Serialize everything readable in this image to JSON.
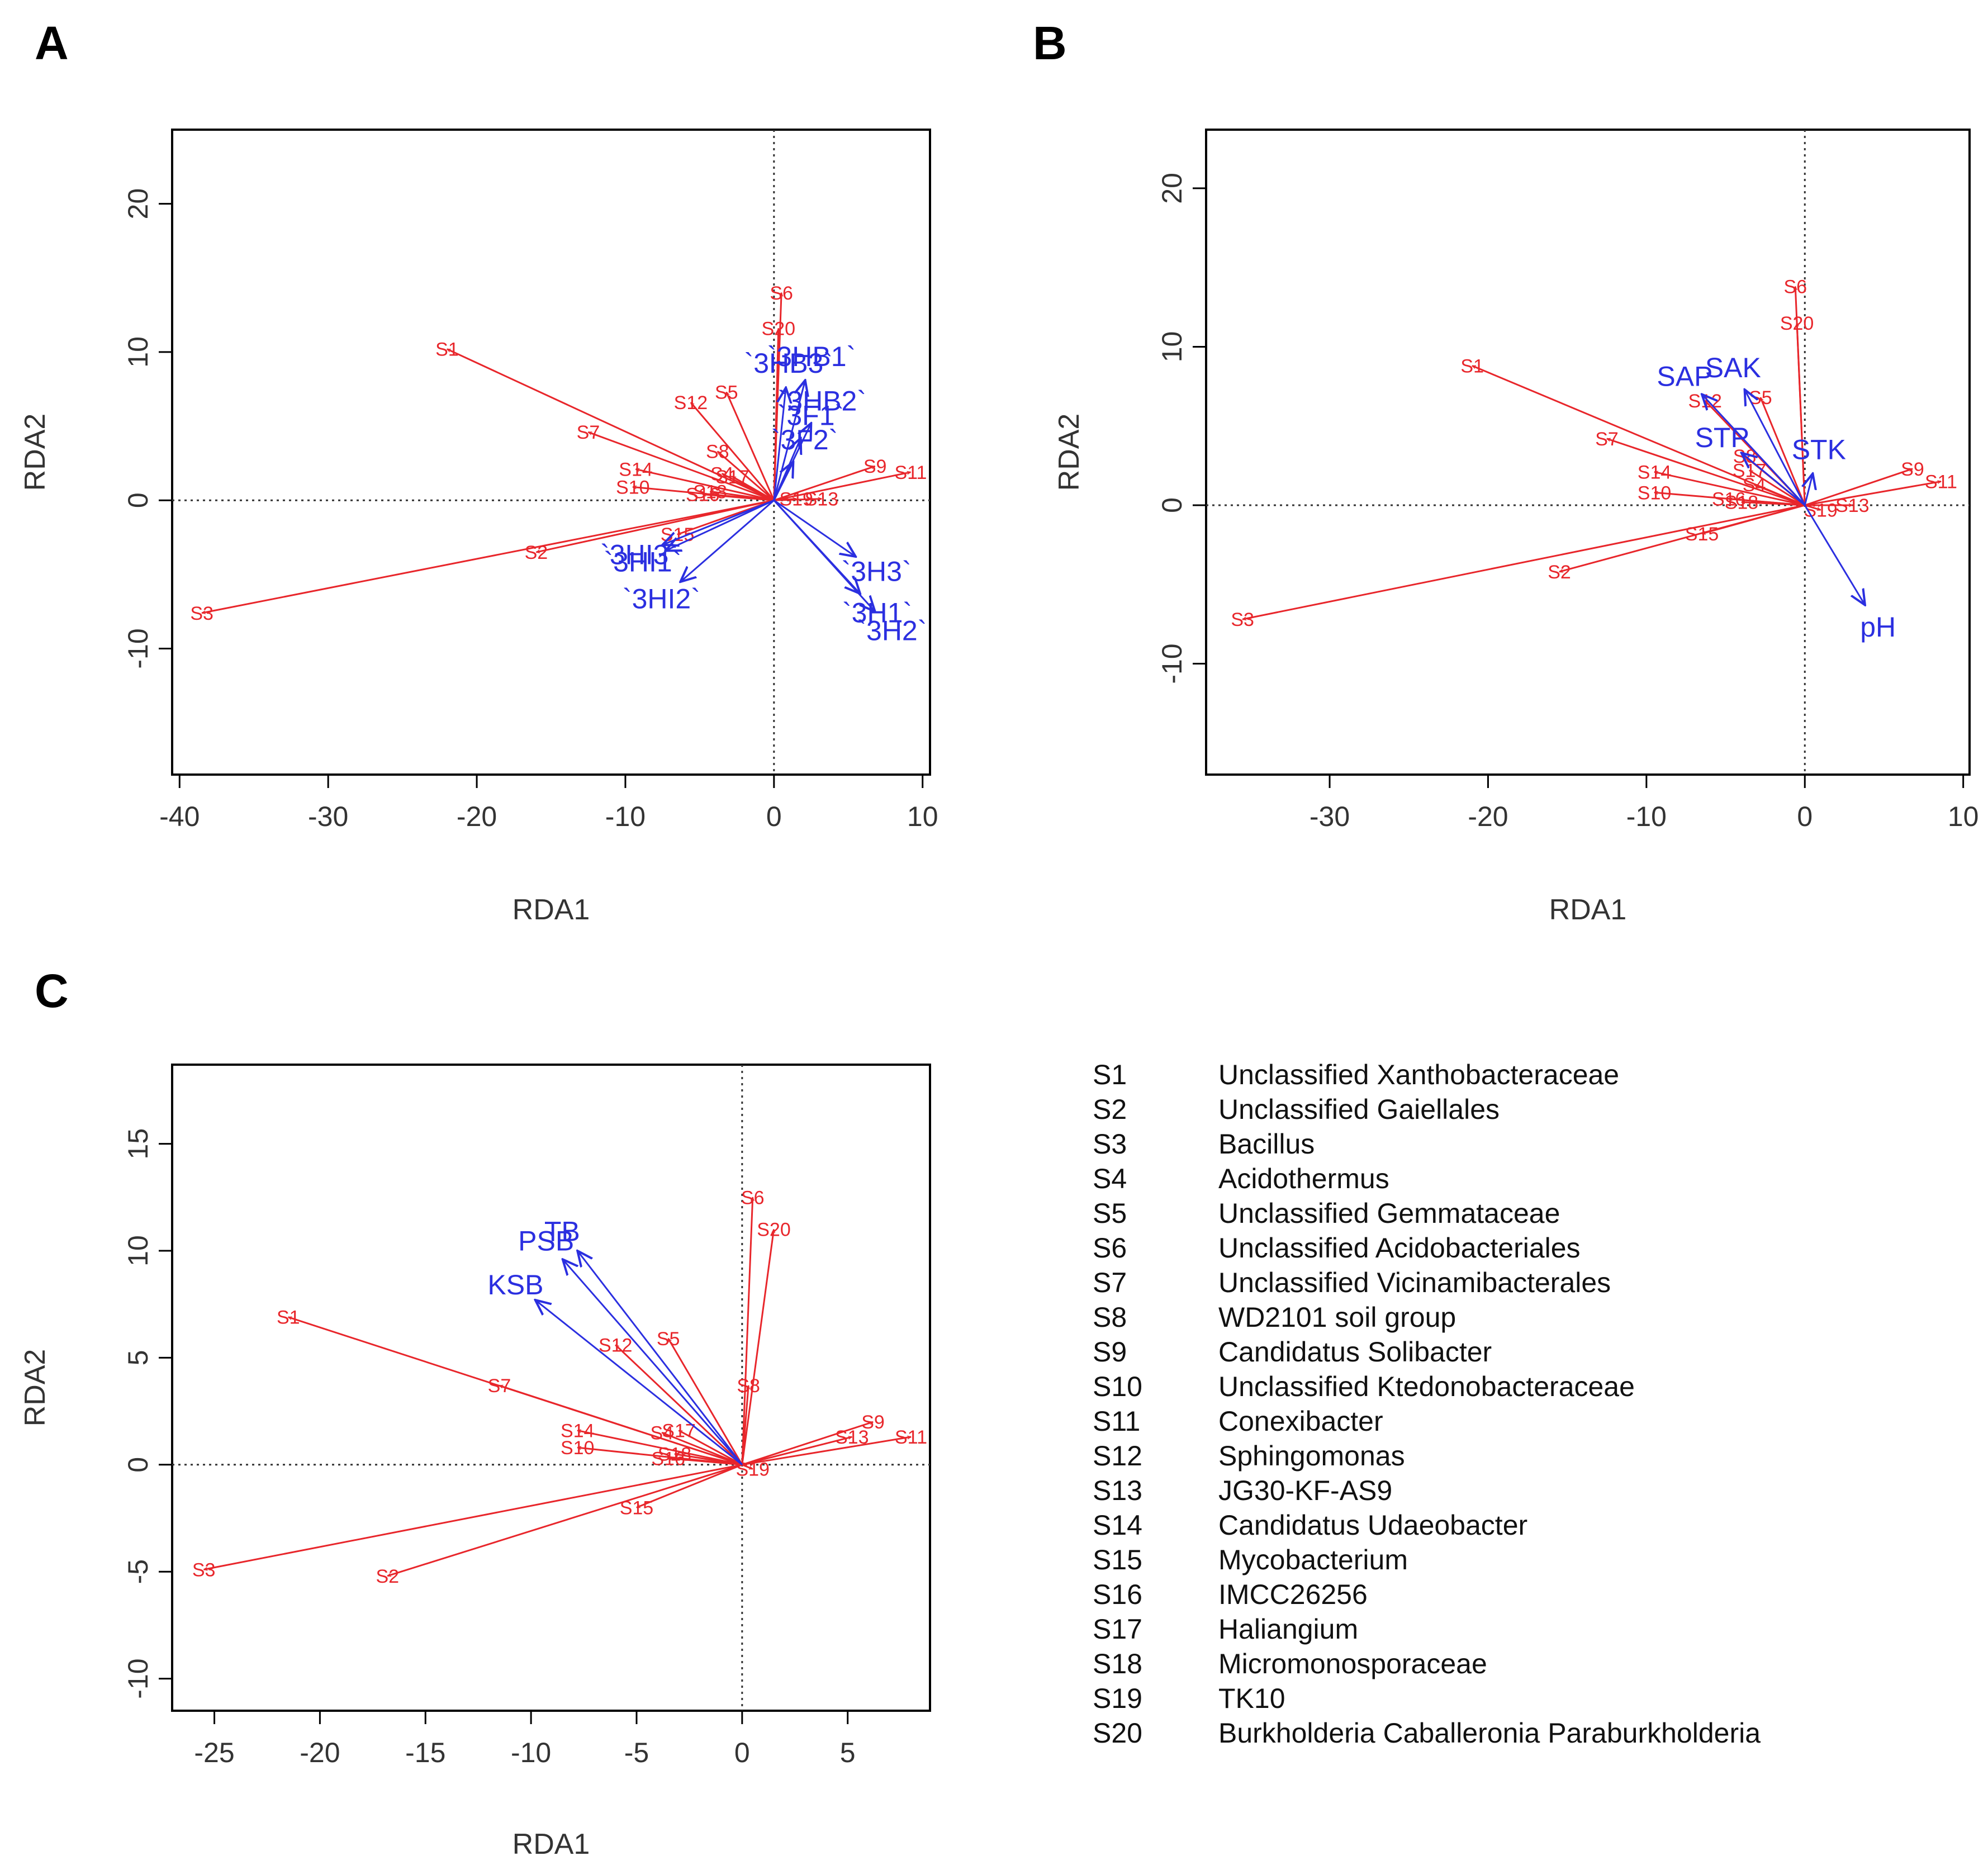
{
  "colors": {
    "species": "#e8262b",
    "env": "#2b2fe0",
    "axis": "#000000",
    "text": "#333333"
  },
  "panel_labels": [
    "A",
    "B",
    "C"
  ],
  "chart_data": [
    {
      "panel": "A",
      "type": "scatter",
      "subtype": "rda-biplot",
      "xlabel": "RDA1",
      "ylabel": "RDA2",
      "xlim": [
        -40.5,
        10.5
      ],
      "ylim": [
        -18.5,
        25
      ],
      "xticks": [
        -40,
        -30,
        -20,
        -10,
        0,
        10
      ],
      "yticks": [
        -10,
        0,
        10,
        20
      ],
      "grid": false,
      "species": [
        {
          "label": "S1",
          "x": -22,
          "y": 10.2
        },
        {
          "label": "S2",
          "x": -16,
          "y": -3.5
        },
        {
          "label": "S3",
          "x": -38.5,
          "y": -7.6
        },
        {
          "label": "S4",
          "x": -3.5,
          "y": 1.8
        },
        {
          "label": "S5",
          "x": -3.2,
          "y": 7.3
        },
        {
          "label": "S6",
          "x": 0.5,
          "y": 14
        },
        {
          "label": "S7",
          "x": -12.5,
          "y": 4.6
        },
        {
          "label": "S8",
          "x": -3.8,
          "y": 3.3
        },
        {
          "label": "S9",
          "x": 6.8,
          "y": 2.3
        },
        {
          "label": "S10",
          "x": -9.5,
          "y": 0.9
        },
        {
          "label": "S11",
          "x": 9.2,
          "y": 1.9
        },
        {
          "label": "S12",
          "x": -5.6,
          "y": 6.6
        },
        {
          "label": "S13",
          "x": 3.2,
          "y": 0.1
        },
        {
          "label": "S14",
          "x": -9.3,
          "y": 2.1
        },
        {
          "label": "S15",
          "x": -6.5,
          "y": -2.3
        },
        {
          "label": "S16",
          "x": -4.8,
          "y": 0.4
        },
        {
          "label": "S17",
          "x": -2.8,
          "y": 1.6
        },
        {
          "label": "S18",
          "x": -4.3,
          "y": 0.6
        },
        {
          "label": "S19",
          "x": 1.5,
          "y": 0.1
        },
        {
          "label": "S20",
          "x": 0.3,
          "y": 11.6
        }
      ],
      "env": [
        {
          "label": "`3HB1`",
          "x": 2.1,
          "y": 8.1
        },
        {
          "label": "`3HB3`",
          "x": 0.8,
          "y": 7.6
        },
        {
          "label": "`3HB2`",
          "x": 2.5,
          "y": 5.2
        },
        {
          "label": "`3F1`",
          "x": 1.8,
          "y": 4.2
        },
        {
          "label": "`3F2`",
          "x": 1.3,
          "y": 2.6
        },
        {
          "label": "`3HI3`",
          "x": -7.5,
          "y": -3.0
        },
        {
          "label": "`3HI1`",
          "x": -7.3,
          "y": -3.4
        },
        {
          "label": "`3HI2`",
          "x": -6.3,
          "y": -5.5
        },
        {
          "label": "`3H3`",
          "x": 5.5,
          "y": -3.8
        },
        {
          "label": "`3H1`",
          "x": 5.8,
          "y": -6.3
        },
        {
          "label": "`3H2`",
          "x": 6.8,
          "y": -7.5
        }
      ]
    },
    {
      "panel": "B",
      "type": "scatter",
      "subtype": "rda-biplot",
      "xlabel": "RDA1",
      "ylabel": "RDA2",
      "xlim": [
        -37.8,
        10.4
      ],
      "ylim": [
        -17,
        23.7
      ],
      "xticks": [
        -30,
        -20,
        -10,
        0,
        10
      ],
      "yticks": [
        -10,
        0,
        10,
        20
      ],
      "grid": false,
      "species": [
        {
          "label": "S1",
          "x": -21,
          "y": 8.8
        },
        {
          "label": "S2",
          "x": -15.5,
          "y": -4.2
        },
        {
          "label": "S3",
          "x": -35.5,
          "y": -7.2
        },
        {
          "label": "S4",
          "x": -3.2,
          "y": 1.3
        },
        {
          "label": "S5",
          "x": -2.8,
          "y": 6.8
        },
        {
          "label": "S6",
          "x": -0.6,
          "y": 13.8
        },
        {
          "label": "S7",
          "x": -12.5,
          "y": 4.2
        },
        {
          "label": "S8",
          "x": -3.8,
          "y": 3.1
        },
        {
          "label": "S9",
          "x": 6.8,
          "y": 2.3
        },
        {
          "label": "S10",
          "x": -9.5,
          "y": 0.8
        },
        {
          "label": "S11",
          "x": 8.6,
          "y": 1.5
        },
        {
          "label": "S12",
          "x": -6.3,
          "y": 6.6
        },
        {
          "label": "S13",
          "x": 3.0,
          "y": 0.0
        },
        {
          "label": "S14",
          "x": -9.5,
          "y": 2.1
        },
        {
          "label": "S15",
          "x": -6.5,
          "y": -1.8
        },
        {
          "label": "S16",
          "x": -4.8,
          "y": 0.4
        },
        {
          "label": "S17",
          "x": -3.5,
          "y": 2.2
        },
        {
          "label": "S18",
          "x": -4.0,
          "y": 0.2
        },
        {
          "label": "S19",
          "x": 1.0,
          "y": -0.3
        },
        {
          "label": "S20",
          "x": -0.5,
          "y": 11.5
        }
      ],
      "env": [
        {
          "label": "SAP",
          "x": -6.5,
          "y": 7.0
        },
        {
          "label": "SAK",
          "x": -3.8,
          "y": 7.3
        },
        {
          "label": "STP",
          "x": -4.0,
          "y": 3.3
        },
        {
          "label": "STK",
          "x": 0.5,
          "y": 2.0
        },
        {
          "label": "pH",
          "x": 3.8,
          "y": -6.3
        }
      ]
    },
    {
      "panel": "C",
      "type": "scatter",
      "subtype": "rda-biplot",
      "xlabel": "RDA1",
      "ylabel": "RDA2",
      "xlim": [
        -27,
        8.9
      ],
      "ylim": [
        -11.5,
        18.7
      ],
      "xticks": [
        -25,
        -20,
        -15,
        -10,
        -5,
        0,
        5
      ],
      "yticks": [
        -10,
        -5,
        0,
        5,
        10,
        15
      ],
      "grid": false,
      "species": [
        {
          "label": "S1",
          "x": -21.5,
          "y": 6.9
        },
        {
          "label": "S2",
          "x": -16.8,
          "y": -5.2
        },
        {
          "label": "S3",
          "x": -25.5,
          "y": -4.9
        },
        {
          "label": "S4",
          "x": -3.8,
          "y": 1.5
        },
        {
          "label": "S5",
          "x": -3.5,
          "y": 5.9
        },
        {
          "label": "S6",
          "x": 0.5,
          "y": 12.5
        },
        {
          "label": "S7",
          "x": -11.5,
          "y": 3.7
        },
        {
          "label": "S8",
          "x": 0.3,
          "y": 3.7
        },
        {
          "label": "S9",
          "x": 6.2,
          "y": 2.0
        },
        {
          "label": "S10",
          "x": -7.8,
          "y": 0.8
        },
        {
          "label": "S11",
          "x": 8.0,
          "y": 1.3
        },
        {
          "label": "S12",
          "x": -6.0,
          "y": 5.6
        },
        {
          "label": "S13",
          "x": 5.2,
          "y": 1.3
        },
        {
          "label": "S14",
          "x": -7.8,
          "y": 1.6
        },
        {
          "label": "S15",
          "x": -5.0,
          "y": -2.0
        },
        {
          "label": "S16",
          "x": -3.5,
          "y": 0.3
        },
        {
          "label": "S17",
          "x": -3.0,
          "y": 1.6
        },
        {
          "label": "S18",
          "x": -3.2,
          "y": 0.5
        },
        {
          "label": "S19",
          "x": 0.5,
          "y": -0.2
        },
        {
          "label": "S20",
          "x": 1.5,
          "y": 11.0
        }
      ],
      "env": [
        {
          "label": "TB",
          "x": -7.8,
          "y": 10.0
        },
        {
          "label": "PSB",
          "x": -8.5,
          "y": 9.6
        },
        {
          "label": "KSB",
          "x": -9.8,
          "y": 7.7
        }
      ]
    }
  ],
  "legend": [
    {
      "code": "S1",
      "name": "Unclassified Xanthobacteraceae"
    },
    {
      "code": "S2",
      "name": "Unclassified Gaiellales"
    },
    {
      "code": "S3",
      "name": "Bacillus"
    },
    {
      "code": "S4",
      "name": "Acidothermus"
    },
    {
      "code": "S5",
      "name": "Unclassified Gemmataceae"
    },
    {
      "code": "S6",
      "name": "Unclassified Acidobacteriales"
    },
    {
      "code": "S7",
      "name": "Unclassified Vicinamibacterales"
    },
    {
      "code": "S8",
      "name": "WD2101 soil group"
    },
    {
      "code": "S9",
      "name": "Candidatus Solibacter"
    },
    {
      "code": "S10",
      "name": "Unclassified Ktedonobacteraceae"
    },
    {
      "code": "S11",
      "name": "Conexibacter"
    },
    {
      "code": "S12",
      "name": "Sphingomonas"
    },
    {
      "code": "S13",
      "name": "JG30-KF-AS9"
    },
    {
      "code": "S14",
      "name": "Candidatus Udaeobacter"
    },
    {
      "code": "S15",
      "name": "Mycobacterium"
    },
    {
      "code": "S16",
      "name": "IMCC26256"
    },
    {
      "code": "S17",
      "name": "Haliangium"
    },
    {
      "code": "S18",
      "name": "Micromonosporaceae"
    },
    {
      "code": "S19",
      "name": "TK10"
    },
    {
      "code": "S20",
      "name": "Burkholderia Caballeronia Paraburkholderia"
    }
  ]
}
